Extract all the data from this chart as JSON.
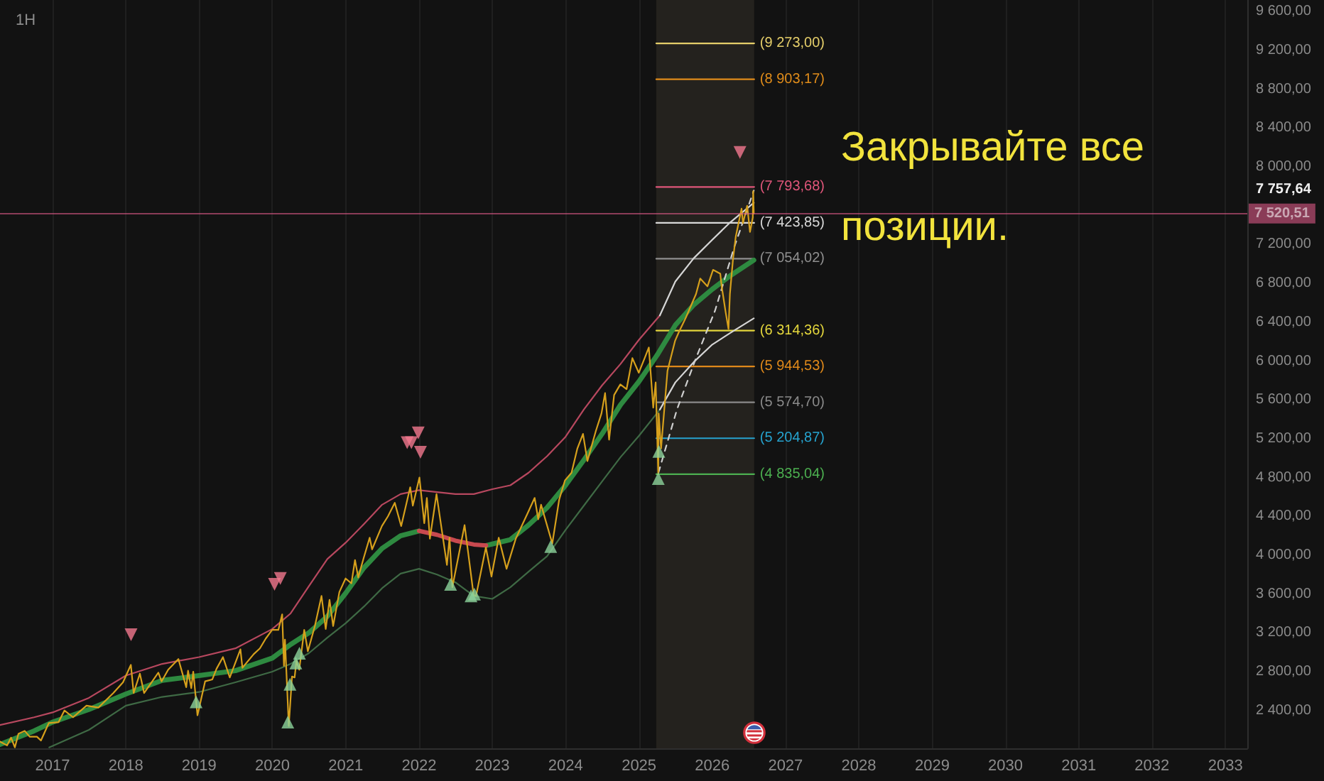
{
  "chart_data": {
    "type": "line",
    "title": "1H",
    "xlim": [
      "2016-04-14",
      "2033-04-20"
    ],
    "xticks": [
      "2017",
      "2018",
      "2019",
      "2020",
      "2021",
      "2022",
      "2023",
      "2024",
      "2025",
      "2026",
      "2027",
      "2028",
      "2029",
      "2030",
      "2031",
      "2032",
      "2033"
    ],
    "ylim": [
      2010,
      9720
    ],
    "yticks": [
      {
        "value": 2400,
        "label": "2 400,00"
      },
      {
        "value": 2800,
        "label": "2 800,00"
      },
      {
        "value": 3200,
        "label": "3 200,00"
      },
      {
        "value": 3600,
        "label": "3 600,00"
      },
      {
        "value": 4000,
        "label": "4 000,00"
      },
      {
        "value": 4400,
        "label": "4 400,00"
      },
      {
        "value": 4800,
        "label": "4 800,00"
      },
      {
        "value": 5200,
        "label": "5 200,00"
      },
      {
        "value": 5600,
        "label": "5 600,00"
      },
      {
        "value": 6000,
        "label": "6 000,00"
      },
      {
        "value": 6400,
        "label": "6 400,00"
      },
      {
        "value": 6800,
        "label": "6 800,00"
      },
      {
        "value": 7200,
        "label": "7 200,00"
      },
      {
        "value": 8000,
        "label": "8 000,00"
      },
      {
        "value": 8400,
        "label": "8 400,00"
      },
      {
        "value": 8800,
        "label": "8 800,00"
      },
      {
        "value": 9200,
        "label": "9 200,00"
      },
      {
        "value": 9600,
        "label": "9 600,00"
      }
    ],
    "grid": "x",
    "series": [
      {
        "color": "#2e8a40",
        "x": [
          "2016-04-14",
          "2016-10",
          "2017-01",
          "2017-07",
          "2018-01",
          "2018-07",
          "2019-01",
          "2019-07",
          "2020-01",
          "2020-04",
          "2020-07",
          "2020-10",
          "2021-01",
          "2021-04",
          "2021-07",
          "2021-10",
          "2022-01",
          "2022-04",
          "2022-07",
          "2022-10",
          "2022-12",
          "2023-04",
          "2023-07",
          "2023-10",
          "2024-01",
          "2024-04",
          "2024-07",
          "2024-10",
          "2025-01",
          "2025-04",
          "2025-07",
          "2025-10",
          "2026-01",
          "2026-04",
          "2026-07-27"
        ],
        "values": [
          2050,
          2190,
          2280,
          2410,
          2570,
          2710,
          2760,
          2810,
          2940,
          3080,
          3200,
          3370,
          3610,
          3870,
          4070,
          4200,
          4250,
          null,
          null,
          null,
          4100,
          4160,
          4310,
          4490,
          4720,
          4980,
          5250,
          5550,
          5790,
          6060,
          6370,
          6580,
          6740,
          6880,
          7040
        ]
      },
      {
        "color": "#c8494f",
        "x": [
          "2022-01",
          "2022-04",
          "2022-07",
          "2022-10",
          "2022-12"
        ],
        "values": [
          4250,
          4210,
          4150,
          4110,
          4100
        ]
      },
      {
        "color": "#b8485f",
        "x": [
          "2016-04-14",
          "2016-10",
          "2017-01",
          "2017-07",
          "2018-01",
          "2018-07",
          "2019-01",
          "2019-07",
          "2020-01",
          "2020-04",
          "2020-07",
          "2020-10",
          "2021-01",
          "2021-04",
          "2021-07",
          "2021-10",
          "2022-01",
          "2022-04",
          "2022-07",
          "2022-10",
          "2023-01",
          "2023-04",
          "2023-07",
          "2023-10",
          "2024-01",
          "2024-04",
          "2024-07",
          "2024-10",
          "2025-01",
          "2025-04-15"
        ],
        "values": [
          2250,
          2330,
          2380,
          2530,
          2760,
          2880,
          2950,
          3040,
          3240,
          3400,
          3680,
          3960,
          4130,
          4320,
          4520,
          4630,
          4670,
          4650,
          4630,
          4630,
          4680,
          4720,
          4850,
          5020,
          5220,
          5500,
          5750,
          5970,
          6220,
          6470
        ]
      },
      {
        "color": "#d6d6d6",
        "x": [
          "2025-04-15",
          "2025-07",
          "2025-10",
          "2026-01",
          "2026-04",
          "2026-07-27"
        ],
        "values": [
          6470,
          6820,
          7060,
          7250,
          7430,
          7630
        ]
      },
      {
        "color": "#3f6a45",
        "x": [
          "2016-12-15",
          "2017-07",
          "2018-01",
          "2018-07",
          "2019-01",
          "2019-07",
          "2020-01",
          "2020-04",
          "2020-07",
          "2020-10",
          "2021-01",
          "2021-04",
          "2021-07",
          "2021-10",
          "2022-01",
          "2022-04",
          "2022-07",
          "2022-10",
          "2023-01",
          "2023-04",
          "2023-07",
          "2023-10",
          "2024-01",
          "2024-04",
          "2024-07",
          "2024-10",
          "2025-01",
          "2025-04-15"
        ],
        "values": [
          2020,
          2200,
          2450,
          2540,
          2590,
          2690,
          2800,
          2880,
          2990,
          3150,
          3300,
          3470,
          3660,
          3810,
          3860,
          3800,
          3720,
          3580,
          3550,
          3670,
          3830,
          3990,
          4260,
          4510,
          4760,
          5010,
          5230,
          5500
        ]
      },
      {
        "color": "#d6d6d6",
        "x": [
          "2025-04-15",
          "2025-07",
          "2025-10",
          "2026-01",
          "2026-04",
          "2026-07-27"
        ],
        "values": [
          5500,
          5780,
          5990,
          6170,
          6290,
          6440
        ]
      },
      {
        "color": "#cfcfcf",
        "line_style": "dashed",
        "x": [
          "2025-04-08",
          "2025-07-09",
          "2025-10-12",
          "2026-01-15",
          "2026-04-20",
          "2026-07-27"
        ],
        "values": [
          4850,
          5500,
          6030,
          6520,
          7170,
          7757.64
        ]
      },
      {
        "color": "#d6a01c",
        "x": [
          "2016-04-14",
          "2016-05-19",
          "2016-06-08",
          "2016-06-27",
          "2016-07-15",
          "2016-08-15",
          "2016-09-09",
          "2016-10-15",
          "2016-11-04",
          "2016-12-13",
          "2017-01-31",
          "2017-03-01",
          "2017-04-13",
          "2017-06-19",
          "2017-08-18",
          "2017-10-31",
          "2017-12-18",
          "2018-01-26",
          "2018-02-09",
          "2018-03-12",
          "2018-04-02",
          "2018-06-12",
          "2018-06-28",
          "2018-07-31",
          "2018-09-20",
          "2018-10-29",
          "2018-11-07",
          "2018-11-23",
          "2018-12-03",
          "2018-12-24",
          "2019-01-31",
          "2019-03-08",
          "2019-03-29",
          "2019-04-30",
          "2019-06-03",
          "2019-07-26",
          "2019-08-05",
          "2019-09-30",
          "2019-10-31",
          "2019-11-29",
          "2019-12-31",
          "2020-01-31",
          "2020-02-19",
          "2020-02-28",
          "2020-03-04",
          "2020-03-23",
          "2020-04-08",
          "2020-04-21",
          "2020-04-30",
          "2020-05-14",
          "2020-06-08",
          "2020-06-26",
          "2020-07-31",
          "2020-09-02",
          "2020-09-23",
          "2020-10-12",
          "2020-10-30",
          "2020-11-30",
          "2020-12-31",
          "2021-01-29",
          "2021-02-16",
          "2021-03-04",
          "2021-03-31",
          "2021-04-30",
          "2021-05-12",
          "2021-06-30",
          "2021-07-30",
          "2021-09-02",
          "2021-10-04",
          "2021-11-18",
          "2021-12-01",
          "2022-01-03",
          "2022-01-27",
          "2022-02-09",
          "2022-02-24",
          "2022-03-29",
          "2022-05-20",
          "2022-06-02",
          "2022-06-16",
          "2022-08-16",
          "2022-09-30",
          "2022-10-12",
          "2022-11-30",
          "2022-12-28",
          "2023-02-02",
          "2023-03-13",
          "2023-04-28",
          "2023-06-30",
          "2023-07-31",
          "2023-08-18",
          "2023-09-01",
          "2023-10-27",
          "2023-11-30",
          "2023-12-29",
          "2024-01-31",
          "2024-02-29",
          "2024-03-28",
          "2024-04-19",
          "2024-05-31",
          "2024-06-28",
          "2024-07-16",
          "2024-08-05",
          "2024-08-30",
          "2024-09-30",
          "2024-10-31",
          "2024-11-29",
          "2024-12-31",
          "2025-01-31",
          "2025-02-19",
          "2025-03-13",
          "2025-03-25",
          "2025-04-04",
          "2025-04-07",
          "2025-04-09",
          "2025-04-21",
          "2025-05-23",
          "2025-06-30",
          "2025-07-19",
          "2025-08-23",
          "2025-10-12",
          "2025-11-02",
          "2025-12-08",
          "2026-01-05",
          "2026-02-10",
          "2026-02-17",
          "2026-03-09",
          "2026-03-23",
          "2026-03-30",
          "2026-04-14",
          "2026-04-28",
          "2026-05-27",
          "2026-06-03",
          "2026-06-24",
          "2026-07-08",
          "2026-07-22",
          "2026-07-24",
          "2026-07-27"
        ],
        "values": [
          2080,
          2040,
          2120,
          2020,
          2160,
          2190,
          2130,
          2130,
          2090,
          2270,
          2280,
          2400,
          2330,
          2450,
          2430,
          2580,
          2690,
          2870,
          2580,
          2780,
          2580,
          2790,
          2700,
          2820,
          2930,
          2640,
          2810,
          2630,
          2800,
          2350,
          2700,
          2720,
          2830,
          2950,
          2740,
          3030,
          2840,
          2980,
          3040,
          3140,
          3230,
          3230,
          3390,
          2860,
          3130,
          2240,
          2750,
          2740,
          2910,
          2820,
          3230,
          3010,
          3270,
          3580,
          3240,
          3540,
          3270,
          3620,
          3760,
          3710,
          3950,
          3770,
          3970,
          4180,
          4060,
          4300,
          4400,
          4540,
          4300,
          4700,
          4510,
          4800,
          4330,
          4590,
          4170,
          4630,
          3900,
          4180,
          3670,
          4310,
          3590,
          3580,
          4080,
          3780,
          4180,
          3860,
          4170,
          4450,
          4590,
          4370,
          4520,
          4120,
          4570,
          4770,
          4850,
          5100,
          5250,
          4970,
          5280,
          5460,
          5670,
          5190,
          5650,
          5760,
          5710,
          6030,
          5880,
          6040,
          6140,
          5520,
          5780,
          5070,
          4840,
          5460,
          5100,
          5900,
          6210,
          6300,
          6450,
          6690,
          6850,
          6770,
          6940,
          6900,
          6770,
          6500,
          6330,
          6690,
          7040,
          7280,
          7570,
          7420,
          7600,
          7330,
          7480,
          7750,
          7520.51
        ]
      },
      {
        "name": "(9 273,00)",
        "color": "#e6cf6a",
        "x": [
          "2025-03-28",
          "2026-07-29"
        ],
        "values": [
          9273.0,
          9273.0
        ]
      },
      {
        "name": "(8 903,17)",
        "color": "#e08c1a",
        "x": [
          "2025-03-28",
          "2026-07-29"
        ],
        "values": [
          8903.17,
          8903.17
        ]
      },
      {
        "name": "(7 793,68)",
        "color": "#e0567a",
        "x": [
          "2025-03-28",
          "2026-07-29"
        ],
        "values": [
          7793.68,
          7793.68
        ]
      },
      {
        "name": "(7 423,85)",
        "color": "#d9d9d9",
        "x": [
          "2025-03-28",
          "2026-07-29"
        ],
        "values": [
          7423.85,
          7423.85
        ]
      },
      {
        "name": "(7 054,02)",
        "color": "#8f8f8f",
        "x": [
          "2025-03-28",
          "2026-07-29"
        ],
        "values": [
          7054.02,
          7054.02
        ]
      },
      {
        "name": "(6 314,36)",
        "color": "#e3d63c",
        "x": [
          "2025-03-28",
          "2026-07-29"
        ],
        "values": [
          6314.36,
          6314.36
        ]
      },
      {
        "name": "(5 944,53)",
        "color": "#e0891a",
        "x": [
          "2025-03-28",
          "2026-07-29"
        ],
        "values": [
          5944.53,
          5944.53
        ]
      },
      {
        "name": "(5 574,70)",
        "color": "#8a8a8a",
        "x": [
          "2025-03-28",
          "2026-07-29"
        ],
        "values": [
          5574.7,
          5574.7
        ]
      },
      {
        "name": "(5 204,87)",
        "color": "#26a3cf",
        "x": [
          "2025-03-28",
          "2026-07-29"
        ],
        "values": [
          5204.87,
          5204.87
        ]
      },
      {
        "name": "(4 835,04)",
        "color": "#4caf50",
        "x": [
          "2025-03-28",
          "2026-07-29"
        ],
        "values": [
          4835.04,
          4835.04
        ]
      },
      {
        "type": "scatter",
        "marker": "triangle",
        "color": "#f2788f",
        "x": [
          "2018-01-27",
          "2020-01-12",
          "2020-02-10",
          "2021-11-03",
          "2021-11-24",
          "2021-12-28",
          "2022-01-08",
          "2026-05-19"
        ],
        "values": [
          3180,
          3700,
          3760,
          5160,
          5160,
          5260,
          5060,
          8150
        ]
      },
      {
        "type": "scatter",
        "marker": "triangle",
        "color": "#8cd39b",
        "x": [
          "2018-12-17",
          "2020-03-18",
          "2020-03-29",
          "2020-04-27",
          "2020-05-15",
          "2022-06-07",
          "2022-09-17",
          "2022-10-04",
          "2023-10-19",
          "2025-04-07",
          "2025-04-10"
        ],
        "values": [
          2490,
          2280,
          2670,
          2890,
          2990,
          3700,
          3580,
          3600,
          4090,
          4790,
          5070
        ]
      }
    ],
    "ref_lines": [
      {
        "axis": "y",
        "value": 7520.51,
        "label": "7 520,51",
        "color": "#ec5f8f"
      }
    ],
    "bands": [
      {
        "axis": "x",
        "from": "2025-03-28",
        "to": "2026-07-29",
        "color": "#24221e"
      }
    ],
    "annotations": [
      "Закрывайте все позиции.",
      "7 757,64"
    ]
  }
}
